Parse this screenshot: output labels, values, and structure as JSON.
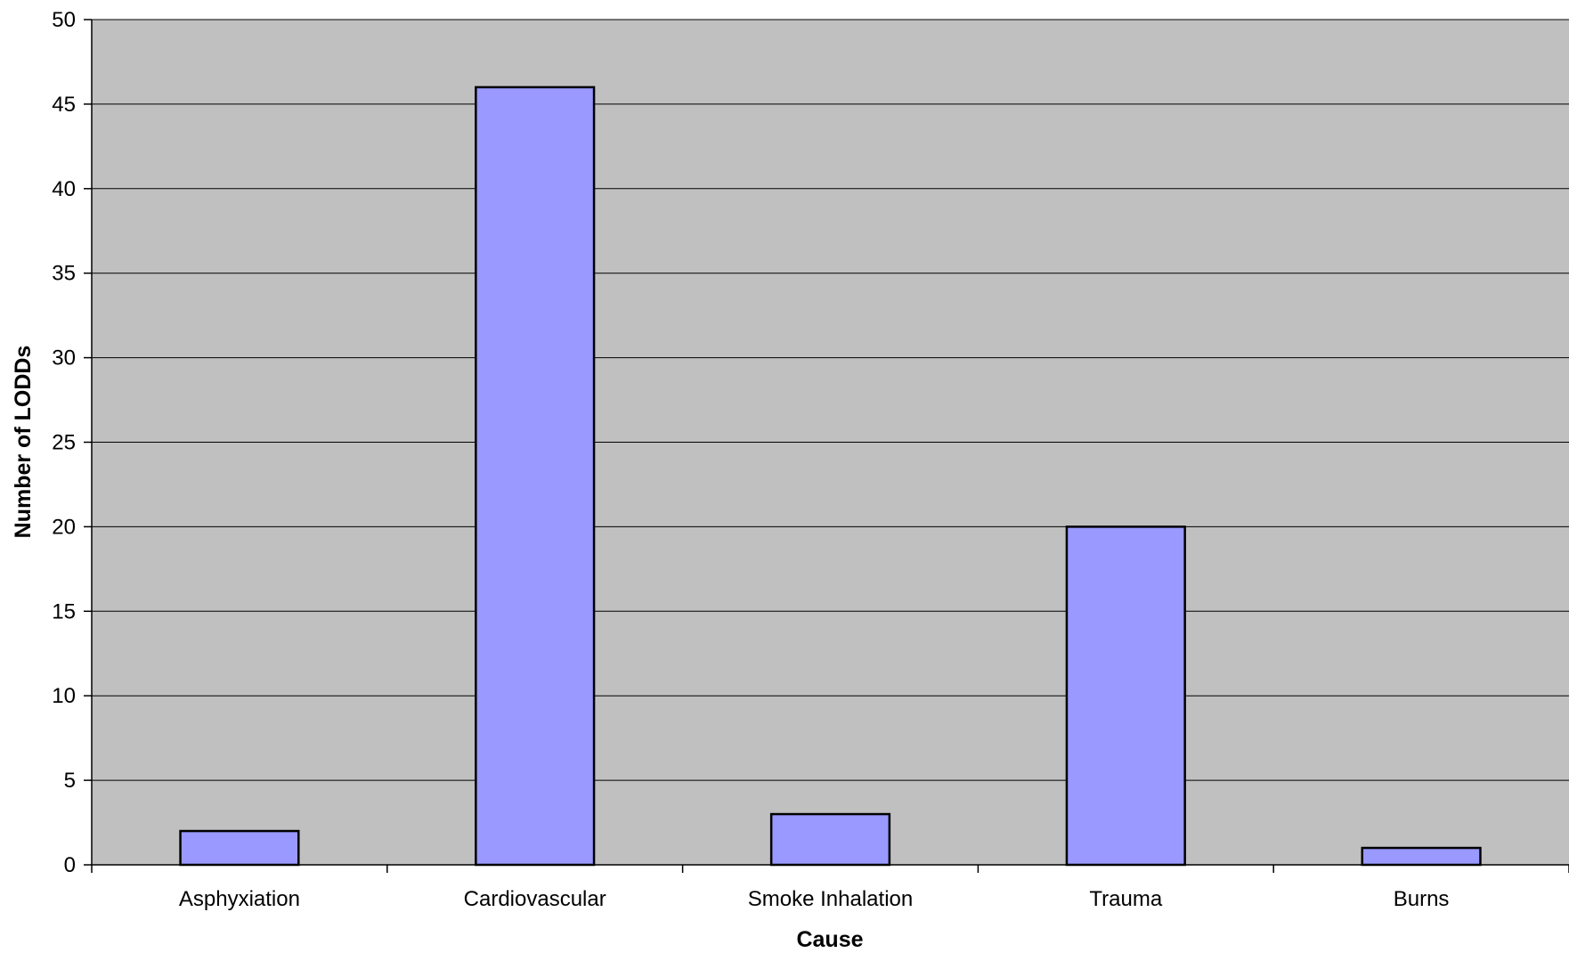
{
  "chart_data": {
    "type": "bar",
    "title": "",
    "xlabel": "Cause",
    "ylabel": "Number of LODDs",
    "categories": [
      "Asphyxiation",
      "Cardiovascular",
      "Smoke Inhalation",
      "Trauma",
      "Burns"
    ],
    "values": [
      2,
      46,
      3,
      20,
      1
    ],
    "ylim": [
      0,
      50
    ],
    "yticks": [
      "0",
      "5",
      "10",
      "15",
      "20",
      "25",
      "30",
      "35",
      "40",
      "45",
      "50"
    ],
    "grid": true,
    "legend": "none",
    "colors": {
      "plot_background": "#c0c0c0",
      "bar_fill": "#9999ff",
      "bar_stroke": "#000000",
      "gridline": "#000000"
    }
  }
}
